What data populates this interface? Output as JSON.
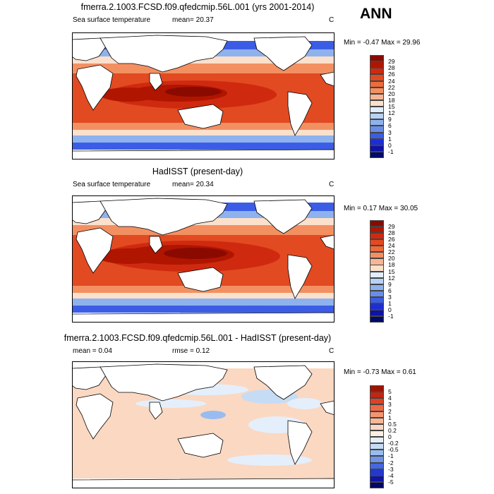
{
  "season": "ANN",
  "panels": [
    {
      "title": "fmerra.2.1003.FCSD.f09.qfedcmip.56L.001 (yrs 2001-2014)",
      "variable": "Sea surface temperature",
      "stat1": "mean=  20.37",
      "stat2": "",
      "units": "C",
      "minmax": "Min =  -0.47 Max =  29.96",
      "colorbar_labels": [
        "29",
        "28",
        "26",
        "24",
        "22",
        "20",
        "18",
        "15",
        "12",
        "9",
        "6",
        "3",
        "1",
        "0",
        "-1"
      ],
      "colorbar_colors": [
        "#8a0a00",
        "#b01500",
        "#cf2a10",
        "#e24a22",
        "#ee6b3b",
        "#f39062",
        "#f7b596",
        "#fbe0cc",
        "#e1eefb",
        "#b8d2f6",
        "#8eb2ee",
        "#6a8ee7",
        "#3b5de6",
        "#1c2dd6",
        "#0d12a8",
        "#020a6a"
      ]
    },
    {
      "title": "HadISST (present-day)",
      "variable": "Sea surface temperature",
      "stat1": "mean=  20.34",
      "stat2": "",
      "units": "C",
      "minmax": "Min =  0.17 Max =  30.05",
      "colorbar_labels": [
        "29",
        "28",
        "26",
        "24",
        "22",
        "20",
        "18",
        "15",
        "12",
        "9",
        "6",
        "3",
        "1",
        "0",
        "-1"
      ],
      "colorbar_colors": [
        "#8a0a00",
        "#b01500",
        "#cf2a10",
        "#e24a22",
        "#ee6b3b",
        "#f39062",
        "#f7b596",
        "#fbe0cc",
        "#e1eefb",
        "#b8d2f6",
        "#8eb2ee",
        "#6a8ee7",
        "#3b5de6",
        "#1c2dd6",
        "#0d12a8",
        "#020a6a"
      ]
    },
    {
      "title": "fmerra.2.1003.FCSD.f09.qfedcmip.56L.001 - HadISST (present-day)",
      "variable": "",
      "stat1": "mean =   0.04",
      "stat2": "rmse =   0.12",
      "units": "C",
      "minmax": "Min =  -0.73 Max =   0.61",
      "colorbar_labels": [
        "5",
        "4",
        "3",
        "2",
        "1",
        "0.5",
        "0.2",
        "0",
        "-0.2",
        "-0.5",
        "-1",
        "-2",
        "-3",
        "-4",
        "-5"
      ],
      "colorbar_colors": [
        "#a01200",
        "#c42510",
        "#de4226",
        "#ee6a45",
        "#f59470",
        "#f8b897",
        "#fbd8c2",
        "#fdeee3",
        "#e4effb",
        "#c6dcf5",
        "#98bcef",
        "#6f95e9",
        "#4468e3",
        "#2238d0",
        "#1015a4",
        "#03086a"
      ]
    }
  ]
}
